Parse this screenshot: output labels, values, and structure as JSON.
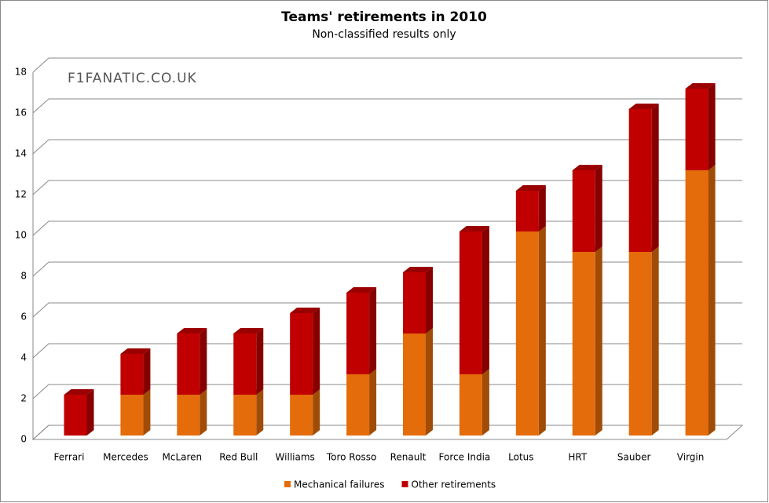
{
  "chart_data": {
    "type": "bar",
    "stacked": true,
    "title": "Teams' retirements in 2010",
    "subtitle": "Non-classified results only",
    "watermark": "F1FANATIC.CO.UK",
    "categories": [
      "Ferrari",
      "Mercedes",
      "McLaren",
      "Red Bull",
      "Williams",
      "Toro Rosso",
      "Renault",
      "Force India",
      "Lotus",
      "HRT",
      "Sauber",
      "Virgin"
    ],
    "series": [
      {
        "name": "Mechanical failures",
        "color": "#e46c0a",
        "values": [
          0,
          2,
          2,
          2,
          2,
          3,
          5,
          3,
          10,
          9,
          9,
          13
        ]
      },
      {
        "name": "Other retirements",
        "color": "#c00000",
        "values": [
          2,
          2,
          3,
          3,
          4,
          4,
          3,
          7,
          2,
          4,
          7,
          4
        ]
      }
    ],
    "ylim": [
      0,
      18
    ],
    "yticks": [
      0,
      2,
      4,
      6,
      8,
      10,
      12,
      14,
      16,
      18
    ],
    "grid": true,
    "legend": "bottom"
  }
}
